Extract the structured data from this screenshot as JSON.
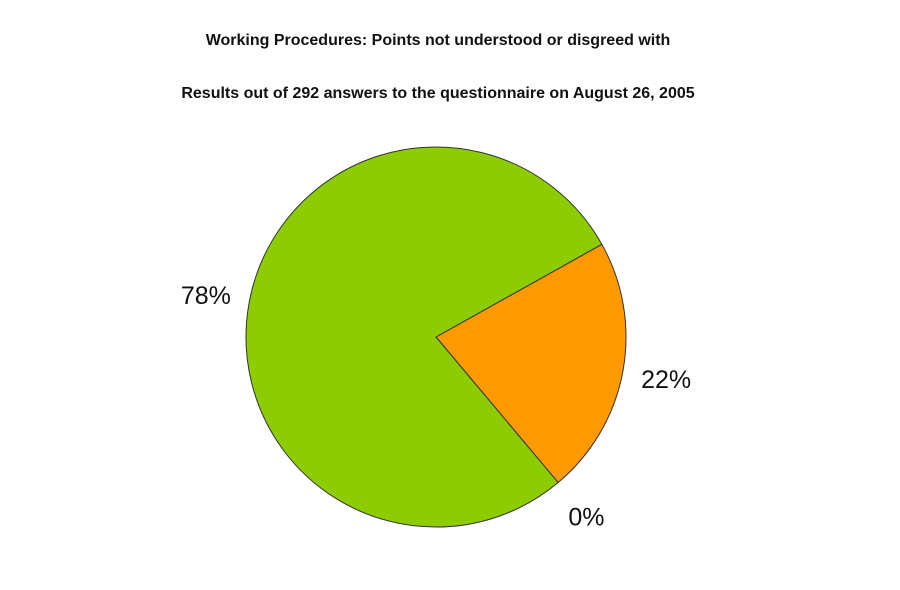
{
  "chart_data": {
    "type": "pie",
    "title": "Working Procedures: Points not understood or disgreed with",
    "subtitle": "Results out of 292 answers to the questionnaire on August 26, 2005",
    "slices": [
      {
        "value": 22,
        "label": "22%",
        "color": "#ff9900"
      },
      {
        "value": 0,
        "label": "0%",
        "color": "#ffff00"
      },
      {
        "value": 78,
        "label": "78%",
        "color": "#8ccc00"
      }
    ],
    "border_color": "#333333",
    "legend": "none"
  }
}
